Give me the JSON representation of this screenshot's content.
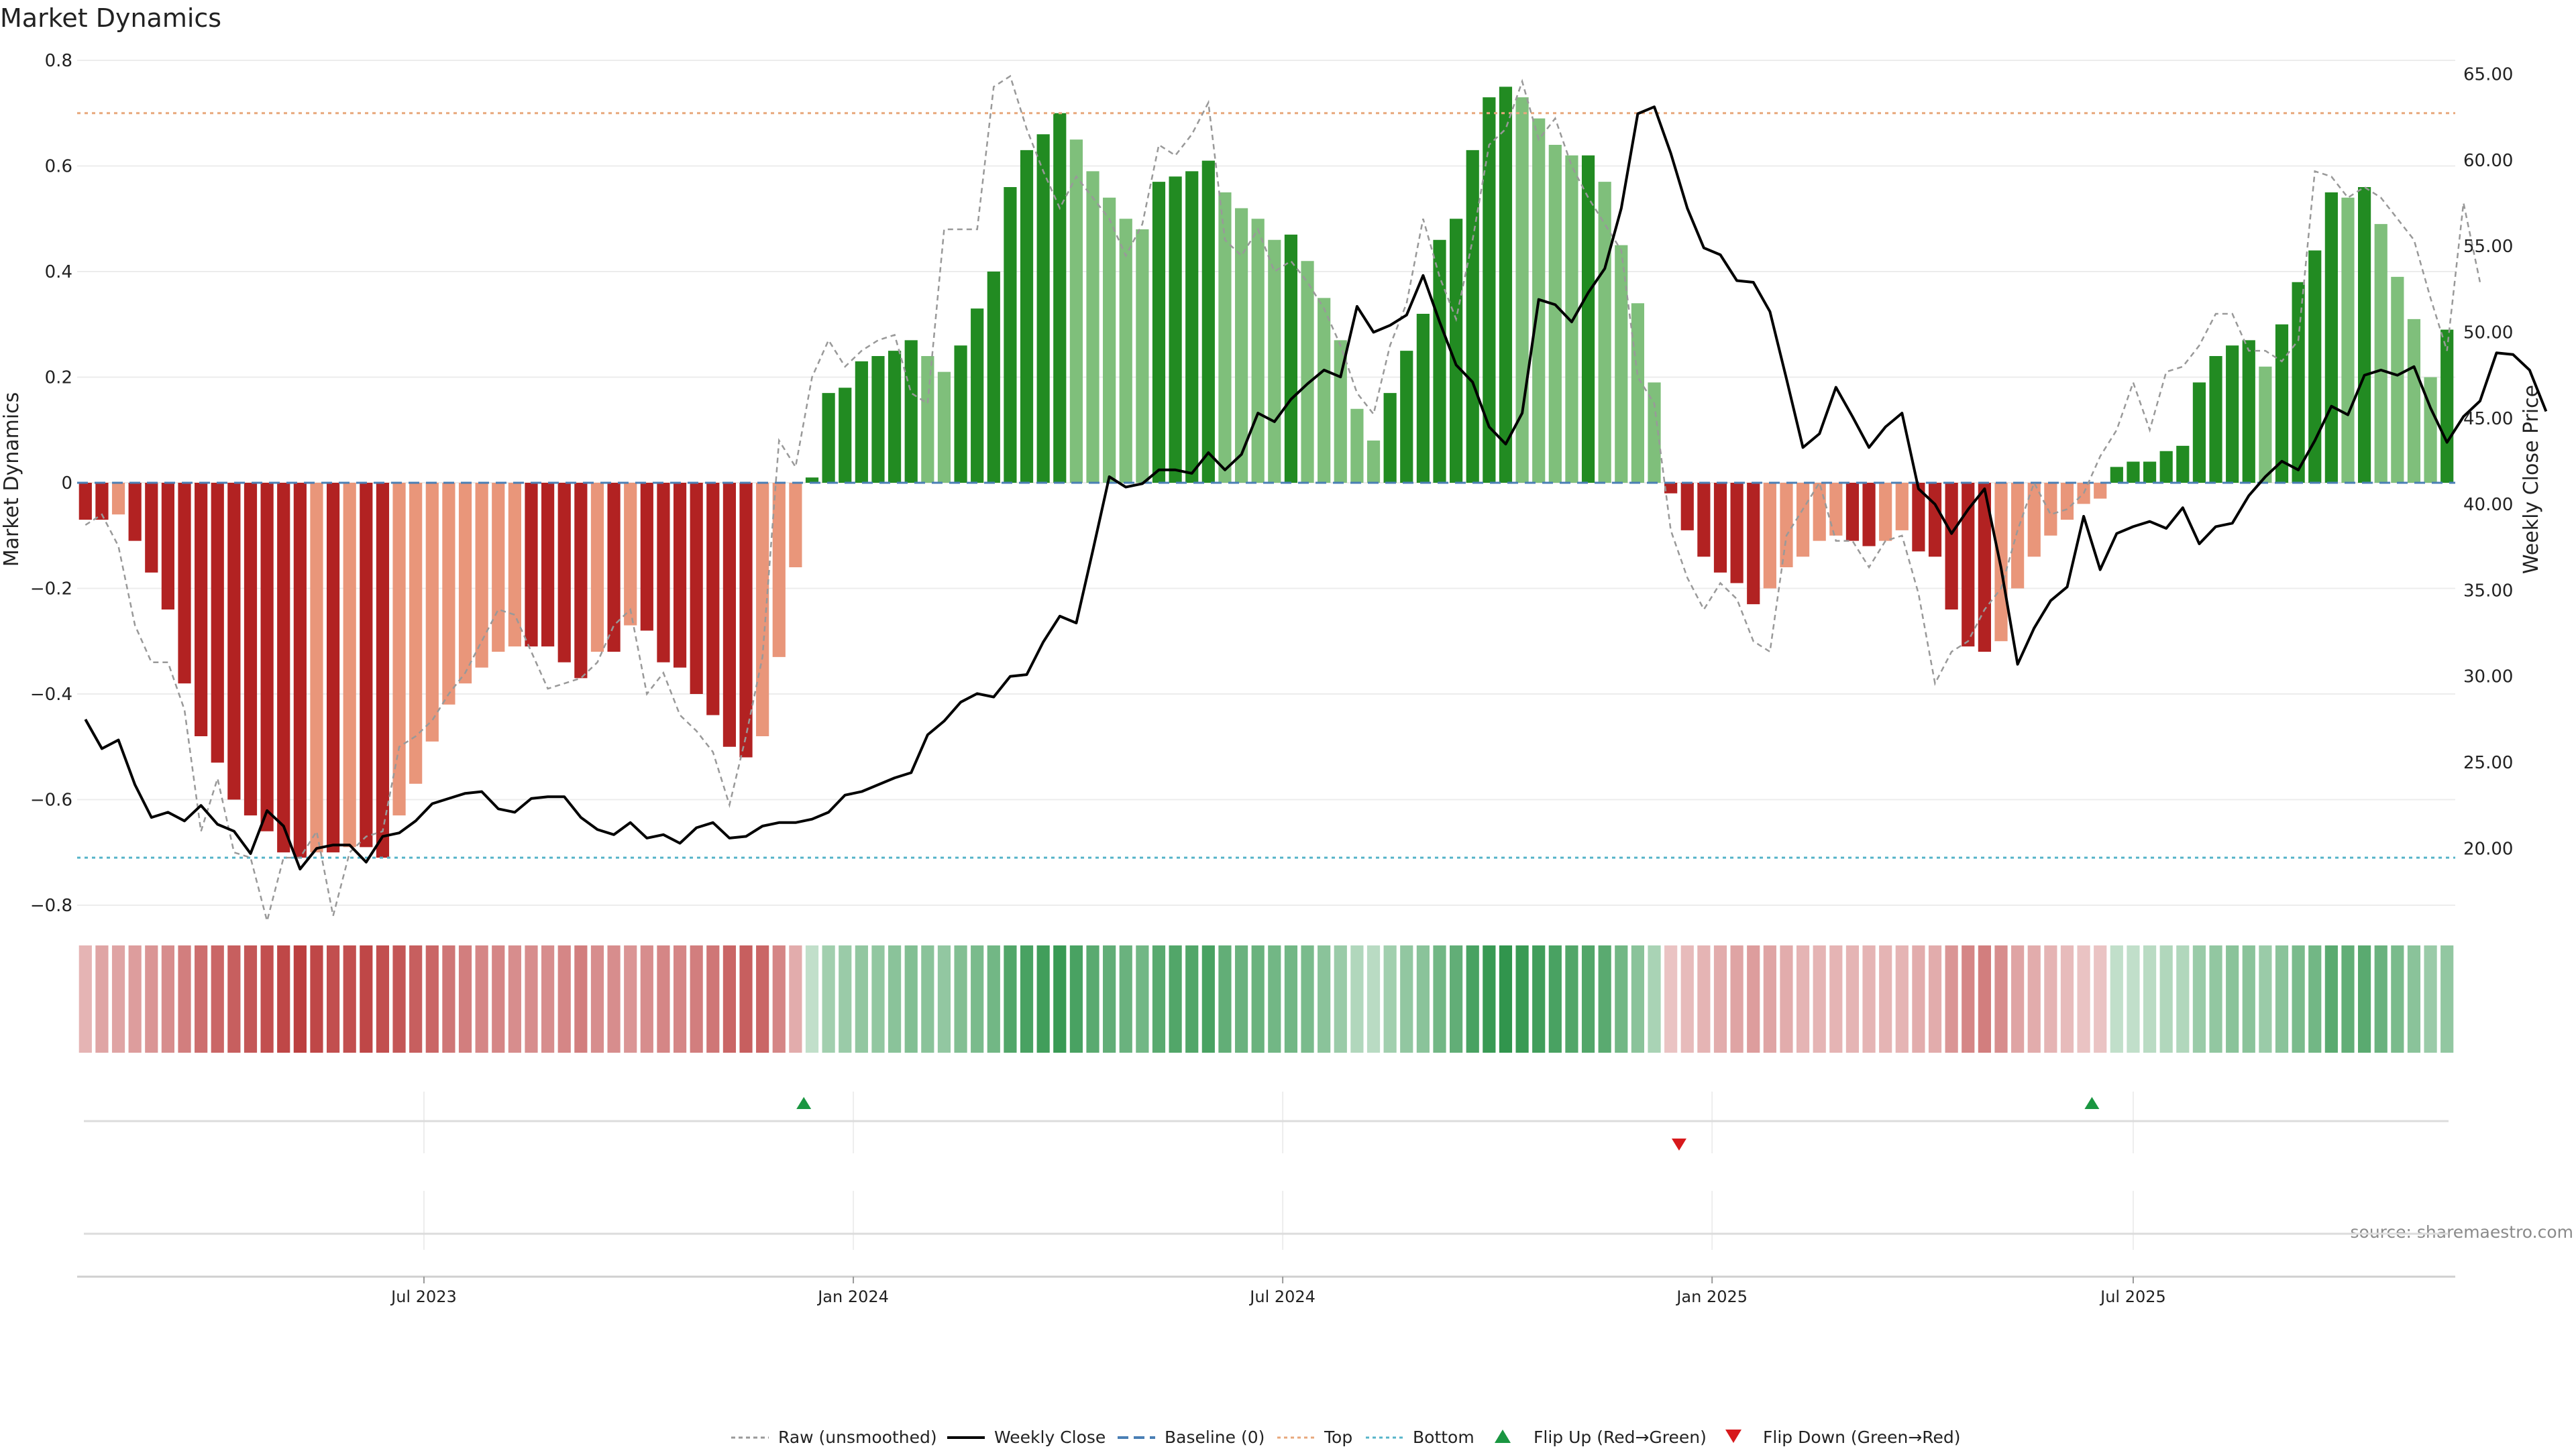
{
  "chart_data": {
    "type": "bar",
    "title": "Market Dynamics",
    "ylabel": "Market Dynamics",
    "y2label": "Weekly Close Price",
    "ylim": [
      -0.8,
      0.8
    ],
    "y2lim": [
      16.7,
      65.8
    ],
    "y_ticks": [
      0.8,
      0.6,
      0.4,
      0.2,
      0,
      -0.2,
      -0.4,
      -0.6,
      -0.8
    ],
    "y_tick_labels": [
      "0.8",
      "0.6",
      "0.4",
      "0.2",
      "0",
      "−0.2",
      "−0.4",
      "−0.6",
      "−0.8"
    ],
    "y2_ticks": [
      65,
      60,
      55,
      50,
      45,
      40,
      35,
      30,
      25,
      20
    ],
    "y2_tick_labels": [
      "65.00",
      "60.00",
      "55.00",
      "50.00",
      "45.00",
      "40.00",
      "35.00",
      "30.00",
      "25.00",
      "20.00"
    ],
    "x_ticks": [
      {
        "label": "Jul 2023",
        "week": 20.5
      },
      {
        "label": "Jan 2024",
        "week": 46.5
      },
      {
        "label": "Jul 2024",
        "week": 72.5
      },
      {
        "label": "Jan 2025",
        "week": 98.5
      },
      {
        "label": "Jul 2025",
        "week": 124.0
      }
    ],
    "top_level": 0.7,
    "bottom_level": -0.71,
    "baseline": 0,
    "legend_position": "bottom-center",
    "legend": [
      "Raw (unsmoothed)",
      "Weekly Close",
      "Baseline (0)",
      "Top",
      "Bottom",
      "Flip Up (Red→Green)",
      "Flip Down (Green→Red)"
    ],
    "annotations": {
      "source": "source: sharemaestro.com"
    },
    "colors": {
      "strong_green": "#228b22",
      "weak_green": "#7fbf7b",
      "strong_red": "#b22222",
      "weak_red": "#e9967a",
      "raw_line": "#999999",
      "close_line": "#000000",
      "baseline": "#4a7fb5",
      "top_line": "#e8a87c",
      "bottom_line": "#56b4c9",
      "flip_up": "#1a9641",
      "flip_down": "#d7191c"
    },
    "series": [
      {
        "name": "Market Dynamics",
        "values": [
          -0.07,
          -0.07,
          -0.06,
          -0.11,
          -0.17,
          -0.24,
          -0.38,
          -0.48,
          -0.53,
          -0.6,
          -0.63,
          -0.66,
          -0.7,
          -0.71,
          -0.7,
          -0.7,
          -0.69,
          -0.69,
          -0.71,
          -0.63,
          -0.57,
          -0.49,
          -0.42,
          -0.38,
          -0.35,
          -0.32,
          -0.31,
          -0.31,
          -0.31,
          -0.34,
          -0.37,
          -0.32,
          -0.32,
          -0.27,
          -0.28,
          -0.34,
          -0.35,
          -0.4,
          -0.44,
          -0.5,
          -0.52,
          -0.48,
          -0.33,
          -0.16,
          0.01,
          0.17,
          0.18,
          0.23,
          0.24,
          0.25,
          0.27,
          0.24,
          0.21,
          0.26,
          0.33,
          0.4,
          0.56,
          0.63,
          0.66,
          0.7,
          0.65,
          0.59,
          0.54,
          0.5,
          0.48,
          0.57,
          0.58,
          0.59,
          0.61,
          0.55,
          0.52,
          0.5,
          0.46,
          0.47,
          0.42,
          0.35,
          0.27,
          0.14,
          0.08,
          0.17,
          0.25,
          0.32,
          0.46,
          0.5,
          0.63,
          0.73,
          0.75,
          0.73,
          0.69,
          0.64,
          0.62,
          0.62,
          0.57,
          0.45,
          0.34,
          0.19,
          -0.02,
          -0.09,
          -0.14,
          -0.17,
          -0.19,
          -0.23,
          -0.2,
          -0.16,
          -0.14,
          -0.11,
          -0.1,
          -0.11,
          -0.12,
          -0.11,
          -0.09,
          -0.13,
          -0.14,
          -0.24,
          -0.31,
          -0.32,
          -0.3,
          -0.2,
          -0.14,
          -0.1,
          -0.07,
          -0.04,
          -0.03,
          0.03,
          0.04,
          0.04,
          0.06,
          0.07,
          0.19,
          0.24,
          0.26,
          0.27,
          0.22,
          0.3,
          0.38,
          0.44,
          0.55,
          0.54,
          0.56,
          0.49,
          0.39,
          0.31,
          0.2,
          0.29
        ]
      },
      {
        "name": "Raw (unsmoothed)",
        "values": [
          -0.08,
          -0.06,
          -0.12,
          -0.27,
          -0.34,
          -0.34,
          -0.43,
          -0.66,
          -0.56,
          -0.7,
          -0.71,
          -0.83,
          -0.71,
          -0.71,
          -0.66,
          -0.82,
          -0.7,
          -0.67,
          -0.66,
          -0.5,
          -0.48,
          -0.45,
          -0.4,
          -0.36,
          -0.3,
          -0.24,
          -0.25,
          -0.32,
          -0.39,
          -0.38,
          -0.37,
          -0.34,
          -0.27,
          -0.24,
          -0.4,
          -0.36,
          -0.44,
          -0.47,
          -0.51,
          -0.61,
          -0.48,
          -0.33,
          0.08,
          0.03,
          0.2,
          0.27,
          0.22,
          0.25,
          0.27,
          0.28,
          0.17,
          0.15,
          0.48,
          0.48,
          0.48,
          0.75,
          0.77,
          0.67,
          0.59,
          0.52,
          0.58,
          0.54,
          0.5,
          0.43,
          0.49,
          0.64,
          0.62,
          0.66,
          0.72,
          0.46,
          0.43,
          0.48,
          0.4,
          0.42,
          0.38,
          0.33,
          0.26,
          0.17,
          0.13,
          0.26,
          0.34,
          0.5,
          0.39,
          0.31,
          0.46,
          0.64,
          0.67,
          0.76,
          0.65,
          0.69,
          0.6,
          0.54,
          0.49,
          0.44,
          0.2,
          0.15,
          -0.09,
          -0.18,
          -0.24,
          -0.19,
          -0.22,
          -0.3,
          -0.32,
          -0.1,
          -0.05,
          0.0,
          -0.11,
          -0.11,
          -0.16,
          -0.11,
          -0.1,
          -0.21,
          -0.38,
          -0.32,
          -0.3,
          -0.24,
          -0.2,
          -0.09,
          0.0,
          -0.06,
          -0.05,
          -0.02,
          0.05,
          0.1,
          0.19,
          0.1,
          0.21,
          0.22,
          0.26,
          0.32,
          0.32,
          0.25,
          0.25,
          0.23,
          0.27,
          0.59,
          0.58,
          0.54,
          0.56,
          0.54,
          0.5,
          0.46,
          0.35,
          0.25,
          0.53,
          0.38
        ]
      },
      {
        "name": "Weekly Close",
        "axis": "right",
        "values": [
          27.5,
          25.8,
          26.3,
          23.7,
          21.8,
          22.1,
          21.6,
          22.5,
          21.4,
          21.0,
          19.7,
          22.2,
          21.3,
          18.8,
          20.0,
          20.2,
          20.2,
          19.2,
          20.7,
          20.9,
          21.6,
          22.6,
          22.9,
          23.2,
          23.3,
          22.3,
          22.1,
          22.9,
          23.0,
          23.0,
          21.8,
          21.1,
          20.8,
          21.5,
          20.6,
          20.8,
          20.3,
          21.2,
          21.5,
          20.6,
          20.7,
          21.3,
          21.5,
          21.5,
          21.7,
          22.1,
          23.1,
          23.3,
          23.7,
          24.1,
          24.4,
          26.6,
          27.4,
          28.5,
          29.0,
          28.8,
          30.0,
          30.1,
          32.0,
          33.5,
          33.1,
          37.3,
          41.6,
          41.0,
          41.2,
          42.0,
          42.0,
          41.8,
          43.0,
          42.0,
          42.9,
          45.3,
          44.8,
          46.1,
          47.0,
          47.8,
          47.4,
          51.5,
          50.0,
          50.4,
          51.0,
          53.3,
          50.6,
          48.1,
          47.1,
          44.5,
          43.5,
          45.3,
          51.9,
          51.6,
          50.6,
          52.3,
          53.7,
          57.2,
          62.7,
          63.1,
          60.4,
          57.2,
          54.9,
          54.5,
          53.0,
          52.9,
          51.2,
          47.3,
          43.3,
          44.1,
          46.8,
          45.1,
          43.3,
          44.5,
          45.3,
          40.9,
          40.0,
          38.3,
          39.7,
          40.9,
          36.3,
          30.7,
          32.8,
          34.4,
          35.2,
          39.3,
          36.2,
          38.3,
          38.7,
          39.0,
          38.6,
          39.8,
          37.7,
          38.7,
          38.9,
          40.5,
          41.6,
          42.5,
          42.0,
          43.7,
          45.7,
          45.2,
          47.5,
          47.8,
          47.5,
          48.0,
          45.6,
          43.6,
          45.1,
          46.0,
          48.8,
          48.7,
          47.8,
          45.4
        ]
      }
    ],
    "strength_strip": [
      0.2,
      0.3,
      0.3,
      0.35,
      0.4,
      0.45,
      0.55,
      0.65,
      0.7,
      0.75,
      0.8,
      0.85,
      0.9,
      0.95,
      0.9,
      0.85,
      0.85,
      0.9,
      0.85,
      0.8,
      0.75,
      0.7,
      0.6,
      0.55,
      0.5,
      0.5,
      0.45,
      0.45,
      0.45,
      0.5,
      0.55,
      0.45,
      0.45,
      0.4,
      0.45,
      0.5,
      0.5,
      0.55,
      0.6,
      0.7,
      0.75,
      0.7,
      0.5,
      0.25,
      0.1,
      0.3,
      0.35,
      0.4,
      0.4,
      0.45,
      0.5,
      0.45,
      0.4,
      0.5,
      0.55,
      0.6,
      0.8,
      0.85,
      0.9,
      0.95,
      0.85,
      0.75,
      0.7,
      0.65,
      0.6,
      0.75,
      0.8,
      0.8,
      0.85,
      0.7,
      0.65,
      0.65,
      0.6,
      0.6,
      0.55,
      0.45,
      0.35,
      0.2,
      0.15,
      0.3,
      0.4,
      0.45,
      0.6,
      0.7,
      0.85,
      0.95,
      1.0,
      0.95,
      0.9,
      0.85,
      0.8,
      0.8,
      0.75,
      0.6,
      0.45,
      0.25,
      0.1,
      0.15,
      0.2,
      0.25,
      0.3,
      0.35,
      0.3,
      0.25,
      0.2,
      0.2,
      0.2,
      0.2,
      0.2,
      0.2,
      0.2,
      0.25,
      0.25,
      0.4,
      0.5,
      0.55,
      0.45,
      0.3,
      0.25,
      0.2,
      0.15,
      0.1,
      0.1,
      0.1,
      0.1,
      0.15,
      0.2,
      0.2,
      0.35,
      0.4,
      0.45,
      0.45,
      0.35,
      0.45,
      0.55,
      0.6,
      0.75,
      0.7,
      0.75,
      0.65,
      0.55,
      0.45,
      0.35,
      0.4
    ],
    "flips": [
      {
        "type": "up",
        "week": 43.5
      },
      {
        "type": "down",
        "week": 96.5
      },
      {
        "type": "up",
        "week": 121.5
      }
    ]
  }
}
